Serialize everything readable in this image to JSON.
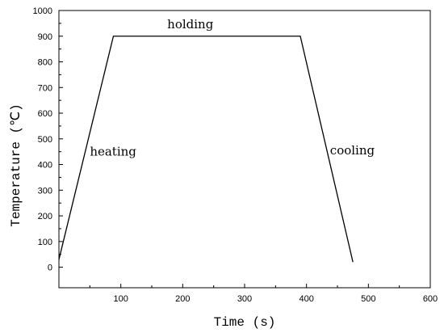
{
  "chart_data": {
    "type": "line",
    "xlabel": "Time (s)",
    "ylabel": "Temperature (℃)",
    "xlim": [
      0,
      600
    ],
    "ylim": [
      -80,
      1000
    ],
    "x_ticks": [
      100,
      200,
      300,
      400,
      500,
      600
    ],
    "y_ticks": [
      0,
      100,
      200,
      300,
      400,
      500,
      600,
      700,
      800,
      900,
      1000
    ],
    "grid": false,
    "legend": "none",
    "series": [
      {
        "x": [
          0,
          88,
          390,
          475
        ],
        "y": [
          30,
          900,
          900,
          20
        ]
      }
    ],
    "annotations": [
      {
        "text": "heating",
        "x": 50,
        "y": 435
      },
      {
        "text": "holding",
        "x": 175,
        "y": 930
      },
      {
        "text": "cooling",
        "x": 438,
        "y": 440
      }
    ]
  }
}
